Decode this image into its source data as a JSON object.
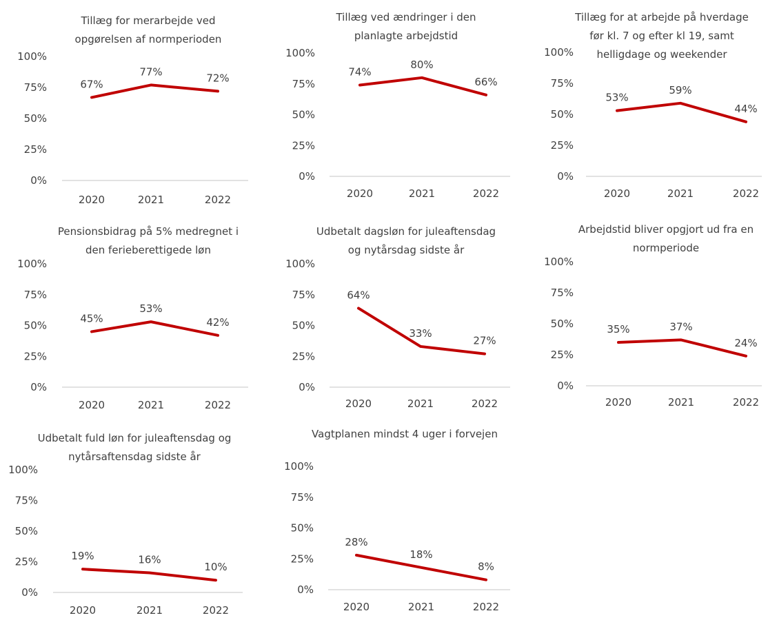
{
  "colors": {
    "line": "#C00000",
    "axis": "#d9d9d9",
    "text": "#404040"
  },
  "chart_data": [
    {
      "type": "line",
      "title": [
        "Tillæg for merarbejde ved",
        "opgørelsen af normperioden"
      ],
      "categories": [
        "2020",
        "2021",
        "2022"
      ],
      "values": [
        67,
        77,
        72
      ],
      "data_labels": [
        "67%",
        "77%",
        "72%"
      ],
      "y_ticks": [
        "0%",
        "25%",
        "50%",
        "75%",
        "100%"
      ],
      "ylim": [
        0,
        100
      ],
      "grid": false,
      "legend": "none"
    },
    {
      "type": "line",
      "title": [
        "Tillæg ved ændringer i den",
        "planlagte arbejdstid"
      ],
      "categories": [
        "2020",
        "2021",
        "2022"
      ],
      "values": [
        74,
        80,
        66
      ],
      "data_labels": [
        "74%",
        "80%",
        "66%"
      ],
      "y_ticks": [
        "0%",
        "25%",
        "50%",
        "75%",
        "100%"
      ],
      "ylim": [
        0,
        100
      ],
      "grid": false,
      "legend": "none"
    },
    {
      "type": "line",
      "title": [
        "Tillæg for at arbejde på hverdage",
        "før kl. 7 og efter kl 19, samt",
        "helligdage og weekender"
      ],
      "categories": [
        "2020",
        "2021",
        "2022"
      ],
      "values": [
        53,
        59,
        44
      ],
      "data_labels": [
        "53%",
        "59%",
        "44%"
      ],
      "y_ticks": [
        "0%",
        "25%",
        "50%",
        "75%",
        "100%"
      ],
      "ylim": [
        0,
        100
      ],
      "grid": false,
      "legend": "none"
    },
    {
      "type": "line",
      "title": [
        "Pensionsbidrag på 5% medregnet i",
        "den ferieberettigede løn"
      ],
      "categories": [
        "2020",
        "2021",
        "2022"
      ],
      "values": [
        45,
        53,
        42
      ],
      "data_labels": [
        "45%",
        "53%",
        "42%"
      ],
      "y_ticks": [
        "0%",
        "25%",
        "50%",
        "75%",
        "100%"
      ],
      "ylim": [
        0,
        100
      ],
      "grid": false,
      "legend": "none"
    },
    {
      "type": "line",
      "title": [
        "Udbetalt dagsløn for juleaftensdag",
        "og nytårsdag sidste år"
      ],
      "categories": [
        "2020",
        "2021",
        "2022"
      ],
      "values": [
        64,
        33,
        27
      ],
      "data_labels": [
        "64%",
        "33%",
        "27%"
      ],
      "y_ticks": [
        "0%",
        "25%",
        "50%",
        "75%",
        "100%"
      ],
      "ylim": [
        0,
        100
      ],
      "grid": false,
      "legend": "none"
    },
    {
      "type": "line",
      "title": [
        "Arbejdstid bliver opgjort ud fra en",
        "normperiode"
      ],
      "categories": [
        "2020",
        "2021",
        "2022"
      ],
      "values": [
        35,
        37,
        24
      ],
      "data_labels": [
        "35%",
        "37%",
        "24%"
      ],
      "y_ticks": [
        "0%",
        "25%",
        "50%",
        "75%",
        "100%"
      ],
      "ylim": [
        0,
        100
      ],
      "grid": false,
      "legend": "none"
    },
    {
      "type": "line",
      "title": [
        "Udbetalt fuld løn for juleaftensdag og",
        "nytårsaftensdag sidste år"
      ],
      "categories": [
        "2020",
        "2021",
        "2022"
      ],
      "values": [
        19,
        16,
        10
      ],
      "data_labels": [
        "19%",
        "16%",
        "10%"
      ],
      "y_ticks": [
        "0%",
        "25%",
        "50%",
        "75%",
        "100%"
      ],
      "ylim": [
        0,
        100
      ],
      "grid": false,
      "legend": "none"
    },
    {
      "type": "line",
      "title": [
        "Vagtplanen mindst 4 uger i forvejen"
      ],
      "categories": [
        "2020",
        "2021",
        "2022"
      ],
      "values": [
        28,
        18,
        8
      ],
      "data_labels": [
        "28%",
        "18%",
        "8%"
      ],
      "y_ticks": [
        "0%",
        "25%",
        "50%",
        "75%",
        "100%"
      ],
      "ylim": [
        0,
        100
      ],
      "grid": false,
      "legend": "none"
    }
  ]
}
